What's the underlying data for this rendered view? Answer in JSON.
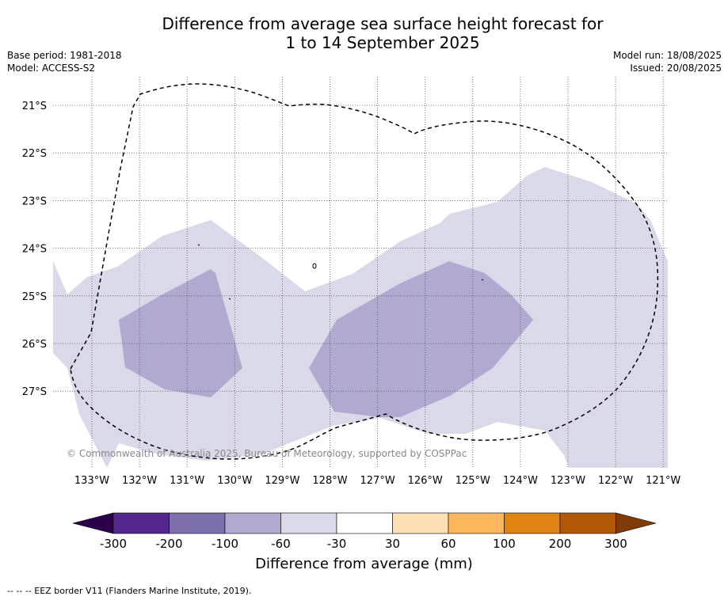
{
  "title": {
    "line1": "Difference from average sea surface height forecast for",
    "line2": "1 to 14 September 2025"
  },
  "meta": {
    "base_period": "Base period: 1981-2018",
    "model": "Model: ACCESS-S2",
    "model_run": "Model run: 18/08/2025",
    "issued": "Issued: 20/08/2025"
  },
  "map": {
    "lon_range": [
      -134,
      -121
    ],
    "lat_range": [
      -28.6,
      -20.4
    ],
    "lon_ticks": [
      "133°W",
      "132°W",
      "131°W",
      "130°W",
      "129°W",
      "128°W",
      "127°W",
      "126°W",
      "125°W",
      "124°W",
      "123°W",
      "122°W",
      "121°W"
    ],
    "lat_ticks": [
      "21°S",
      "22°S",
      "23°S",
      "24°S",
      "25°S",
      "26°S",
      "27°S"
    ],
    "copyright": "© Commonwealth of Australia 2025, Bureau of Meteorology, supported by COSPPac",
    "regions": [
      {
        "category": "-60 to -30 mm",
        "color": "#d9d9e9"
      },
      {
        "category": "-100 to -60 mm",
        "color": "#b1a9d0"
      }
    ],
    "eez_border_style": "dashed black"
  },
  "colorbar": {
    "label": "Difference from average (mm)",
    "ticks": [
      "-300",
      "-200",
      "-100",
      "-60",
      "-30",
      "30",
      "60",
      "100",
      "200",
      "300"
    ],
    "bins": [
      {
        "color": "#54278f"
      },
      {
        "color": "#7e70aa"
      },
      {
        "color": "#b1a9d0"
      },
      {
        "color": "#d9d9e9"
      },
      {
        "color": "#ffffff"
      },
      {
        "color": "#fee0b6"
      },
      {
        "color": "#fcb75d"
      },
      {
        "color": "#e08214"
      },
      {
        "color": "#b35806"
      }
    ],
    "extend_low_color": "#2d004b",
    "extend_high_color": "#7f3b08"
  },
  "footnote": "--  --  -- EEZ border V11 (Flanders Marine Institute, 2019)."
}
